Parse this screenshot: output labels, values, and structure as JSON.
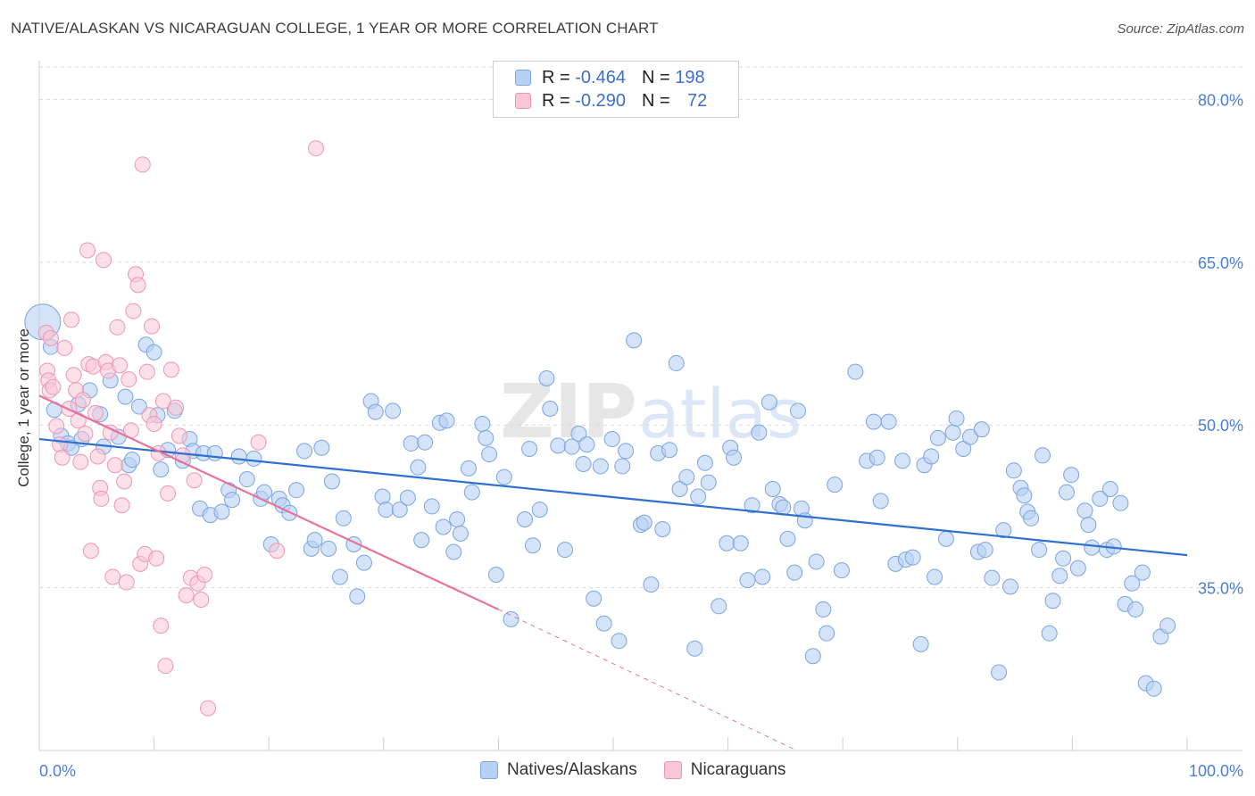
{
  "header": {
    "title": "NATIVE/ALASKAN VS NICARAGUAN COLLEGE, 1 YEAR OR MORE CORRELATION CHART",
    "source": "Source: ZipAtlas.com"
  },
  "legend": {
    "r_label": "R =",
    "n_label": "N =",
    "rows": [
      {
        "r": "-0.464",
        "n": "198"
      },
      {
        "r": "-0.290",
        "n": "72"
      }
    ]
  },
  "bottom_legend": [
    "Natives/Alaskans",
    "Nicaraguans"
  ],
  "colors": {
    "blue_fill": "#b7d0f3",
    "blue_stroke": "#7aa4e2",
    "blue_line": "#2f6fd0",
    "pink_fill": "#f8c6d6",
    "pink_stroke": "#ee95b3",
    "pink_line": "#e8719a",
    "grid": "#d9d9d9",
    "tick_text": "#4a7fd4"
  },
  "chart_data": {
    "type": "scatter",
    "title": "NATIVE/ALASKAN VS NICARAGUAN COLLEGE, 1 YEAR OR MORE CORRELATION CHART",
    "xlabel": "",
    "ylabel": "College, 1 year or more",
    "xlim": [
      0,
      100
    ],
    "ylim": [
      20,
      83
    ],
    "x_tick_labels": [
      "0.0%",
      "100.0%"
    ],
    "y_ticks": [
      35,
      50,
      65,
      80
    ],
    "y_tick_labels": [
      "35.0%",
      "50.0%",
      "65.0%",
      "80.0%"
    ],
    "watermark": "ZIPatlas",
    "series": [
      {
        "name": "Natives/Alaskans",
        "r": -0.464,
        "n": 198,
        "trend": {
          "x": [
            0,
            100
          ],
          "y": [
            48.7,
            38.0
          ]
        },
        "large_point": {
          "x": 0.3,
          "y": 59.5
        },
        "points": [
          [
            1.0,
            57.2
          ],
          [
            1.3,
            51.4
          ],
          [
            1.9,
            49.0
          ],
          [
            2.5,
            48.3
          ],
          [
            2.8,
            47.9
          ],
          [
            3.4,
            51.9
          ],
          [
            3.7,
            48.7
          ],
          [
            4.4,
            53.2
          ],
          [
            5.3,
            51.0
          ],
          [
            5.6,
            48.0
          ],
          [
            6.2,
            54.1
          ],
          [
            6.9,
            48.9
          ],
          [
            7.5,
            52.6
          ],
          [
            7.8,
            46.3
          ],
          [
            8.1,
            46.8
          ],
          [
            8.7,
            51.7
          ],
          [
            9.3,
            57.4
          ],
          [
            10.0,
            56.7
          ],
          [
            10.3,
            50.9
          ],
          [
            10.6,
            45.9
          ],
          [
            11.2,
            47.7
          ],
          [
            11.8,
            51.3
          ],
          [
            12.5,
            46.7
          ],
          [
            13.1,
            48.7
          ],
          [
            13.4,
            47.6
          ],
          [
            14.0,
            42.3
          ],
          [
            14.3,
            47.4
          ],
          [
            14.9,
            41.7
          ],
          [
            15.3,
            47.4
          ],
          [
            15.9,
            42.0
          ],
          [
            16.5,
            44.0
          ],
          [
            16.8,
            43.1
          ],
          [
            17.4,
            47.1
          ],
          [
            18.1,
            45.0
          ],
          [
            18.7,
            46.9
          ],
          [
            19.3,
            43.2
          ],
          [
            19.6,
            43.8
          ],
          [
            20.2,
            39.0
          ],
          [
            20.9,
            43.2
          ],
          [
            21.2,
            42.6
          ],
          [
            21.8,
            41.9
          ],
          [
            22.4,
            44.0
          ],
          [
            23.1,
            47.6
          ],
          [
            23.7,
            38.6
          ],
          [
            24.0,
            39.4
          ],
          [
            24.6,
            47.9
          ],
          [
            25.2,
            38.6
          ],
          [
            25.5,
            44.8
          ],
          [
            26.2,
            36.0
          ],
          [
            26.5,
            41.4
          ],
          [
            27.4,
            39.0
          ],
          [
            27.7,
            34.2
          ],
          [
            28.3,
            37.3
          ],
          [
            28.9,
            52.2
          ],
          [
            29.3,
            51.2
          ],
          [
            29.9,
            43.4
          ],
          [
            30.2,
            42.2
          ],
          [
            30.8,
            51.3
          ],
          [
            31.4,
            42.2
          ],
          [
            32.1,
            43.3
          ],
          [
            32.4,
            48.3
          ],
          [
            33.0,
            46.1
          ],
          [
            33.3,
            39.4
          ],
          [
            33.6,
            48.4
          ],
          [
            34.2,
            42.5
          ],
          [
            34.9,
            50.2
          ],
          [
            35.2,
            40.6
          ],
          [
            35.5,
            50.4
          ],
          [
            36.1,
            38.3
          ],
          [
            36.4,
            41.3
          ],
          [
            36.7,
            40.0
          ],
          [
            37.4,
            46.0
          ],
          [
            37.7,
            43.8
          ],
          [
            38.6,
            50.1
          ],
          [
            38.9,
            48.8
          ],
          [
            39.2,
            47.3
          ],
          [
            39.8,
            36.2
          ],
          [
            40.5,
            45.2
          ],
          [
            41.1,
            32.1
          ],
          [
            42.3,
            41.3
          ],
          [
            42.7,
            47.8
          ],
          [
            43.0,
            38.9
          ],
          [
            43.6,
            42.2
          ],
          [
            44.2,
            54.3
          ],
          [
            44.5,
            51.5
          ],
          [
            45.2,
            48.1
          ],
          [
            45.8,
            38.5
          ],
          [
            46.4,
            48.0
          ],
          [
            47.0,
            49.2
          ],
          [
            47.4,
            46.4
          ],
          [
            47.7,
            48.2
          ],
          [
            48.3,
            34.0
          ],
          [
            48.9,
            46.2
          ],
          [
            49.2,
            31.7
          ],
          [
            49.9,
            48.7
          ],
          [
            50.5,
            30.1
          ],
          [
            50.8,
            46.2
          ],
          [
            51.1,
            47.6
          ],
          [
            51.8,
            57.8
          ],
          [
            52.4,
            40.8
          ],
          [
            52.7,
            41.0
          ],
          [
            53.3,
            35.3
          ],
          [
            53.9,
            47.4
          ],
          [
            54.3,
            40.4
          ],
          [
            54.9,
            47.7
          ],
          [
            55.5,
            55.7
          ],
          [
            55.8,
            44.1
          ],
          [
            56.4,
            45.2
          ],
          [
            57.1,
            29.4
          ],
          [
            57.4,
            43.4
          ],
          [
            58.0,
            46.5
          ],
          [
            58.3,
            44.7
          ],
          [
            59.2,
            33.3
          ],
          [
            59.9,
            39.1
          ],
          [
            60.2,
            47.9
          ],
          [
            60.5,
            47.0
          ],
          [
            61.1,
            39.1
          ],
          [
            61.7,
            35.7
          ],
          [
            62.1,
            42.6
          ],
          [
            62.7,
            49.3
          ],
          [
            63.0,
            36.0
          ],
          [
            63.6,
            52.1
          ],
          [
            63.9,
            44.1
          ],
          [
            64.5,
            42.7
          ],
          [
            64.8,
            42.4
          ],
          [
            65.2,
            39.5
          ],
          [
            65.8,
            36.4
          ],
          [
            66.1,
            51.3
          ],
          [
            66.4,
            42.3
          ],
          [
            66.7,
            41.2
          ],
          [
            67.4,
            28.7
          ],
          [
            67.7,
            37.4
          ],
          [
            68.3,
            33.0
          ],
          [
            68.6,
            30.8
          ],
          [
            69.3,
            44.5
          ],
          [
            69.9,
            36.6
          ],
          [
            71.1,
            54.9
          ],
          [
            72.1,
            46.7
          ],
          [
            72.7,
            50.3
          ],
          [
            73.0,
            47.0
          ],
          [
            73.3,
            43.0
          ],
          [
            74.0,
            50.3
          ],
          [
            74.6,
            37.2
          ],
          [
            75.2,
            46.7
          ],
          [
            75.5,
            37.6
          ],
          [
            76.1,
            37.8
          ],
          [
            76.8,
            29.8
          ],
          [
            77.1,
            46.3
          ],
          [
            77.7,
            47.1
          ],
          [
            78.0,
            36.0
          ],
          [
            78.3,
            48.8
          ],
          [
            79.0,
            39.5
          ],
          [
            79.6,
            49.3
          ],
          [
            79.9,
            50.6
          ],
          [
            80.5,
            47.8
          ],
          [
            81.1,
            48.9
          ],
          [
            81.8,
            38.3
          ],
          [
            82.1,
            49.6
          ],
          [
            82.4,
            38.5
          ],
          [
            83.0,
            35.9
          ],
          [
            83.6,
            27.2
          ],
          [
            84.0,
            40.3
          ],
          [
            84.6,
            35.1
          ],
          [
            84.9,
            45.8
          ],
          [
            85.5,
            44.2
          ],
          [
            85.8,
            43.5
          ],
          [
            86.1,
            42.0
          ],
          [
            86.4,
            41.4
          ],
          [
            87.1,
            38.5
          ],
          [
            87.4,
            47.2
          ],
          [
            88.0,
            30.8
          ],
          [
            88.3,
            33.8
          ],
          [
            88.9,
            36.1
          ],
          [
            89.2,
            37.7
          ],
          [
            89.5,
            43.8
          ],
          [
            89.9,
            45.4
          ],
          [
            90.5,
            36.8
          ],
          [
            91.1,
            42.1
          ],
          [
            91.4,
            40.8
          ],
          [
            91.7,
            38.7
          ],
          [
            92.4,
            43.2
          ],
          [
            93.0,
            38.5
          ],
          [
            93.3,
            44.1
          ],
          [
            93.6,
            38.8
          ],
          [
            94.2,
            42.8
          ],
          [
            94.6,
            33.5
          ],
          [
            95.2,
            35.4
          ],
          [
            95.5,
            33.0
          ],
          [
            96.1,
            36.4
          ],
          [
            96.4,
            26.2
          ],
          [
            97.1,
            25.7
          ],
          [
            97.7,
            30.5
          ],
          [
            98.3,
            31.5
          ]
        ]
      },
      {
        "name": "Nicaraguans",
        "r": -0.29,
        "n": 72,
        "trend": {
          "x": [
            0,
            40
          ],
          "y": [
            52.7,
            33.0
          ]
        },
        "trend_extension": {
          "x": [
            40,
            66
          ],
          "y": [
            33.0,
            20.0
          ]
        },
        "points": [
          [
            0.6,
            58.5
          ],
          [
            0.7,
            55.0
          ],
          [
            0.8,
            54.1
          ],
          [
            0.9,
            53.2
          ],
          [
            1.0,
            58.0
          ],
          [
            1.2,
            53.5
          ],
          [
            1.5,
            49.9
          ],
          [
            1.8,
            48.2
          ],
          [
            2.0,
            47.0
          ],
          [
            2.2,
            57.1
          ],
          [
            2.6,
            51.5
          ],
          [
            2.8,
            59.7
          ],
          [
            3.0,
            54.6
          ],
          [
            3.2,
            53.2
          ],
          [
            3.4,
            50.4
          ],
          [
            3.6,
            46.6
          ],
          [
            3.8,
            52.3
          ],
          [
            4.0,
            49.2
          ],
          [
            4.2,
            66.1
          ],
          [
            4.3,
            55.6
          ],
          [
            4.5,
            38.4
          ],
          [
            4.7,
            55.4
          ],
          [
            4.9,
            51.1
          ],
          [
            5.1,
            47.1
          ],
          [
            5.3,
            44.2
          ],
          [
            5.4,
            43.2
          ],
          [
            5.6,
            65.2
          ],
          [
            5.8,
            55.8
          ],
          [
            6.0,
            55.0
          ],
          [
            6.2,
            49.3
          ],
          [
            6.4,
            36.0
          ],
          [
            6.6,
            46.3
          ],
          [
            6.8,
            59.0
          ],
          [
            7.0,
            55.5
          ],
          [
            7.2,
            42.6
          ],
          [
            7.4,
            44.8
          ],
          [
            7.6,
            35.5
          ],
          [
            7.8,
            54.2
          ],
          [
            8.0,
            49.5
          ],
          [
            8.2,
            60.5
          ],
          [
            8.4,
            63.9
          ],
          [
            8.6,
            62.9
          ],
          [
            8.8,
            37.2
          ],
          [
            9.0,
            74.0
          ],
          [
            9.2,
            38.1
          ],
          [
            9.4,
            54.9
          ],
          [
            9.6,
            50.9
          ],
          [
            9.8,
            59.1
          ],
          [
            10.0,
            50.1
          ],
          [
            10.2,
            37.7
          ],
          [
            10.4,
            47.4
          ],
          [
            10.6,
            31.5
          ],
          [
            10.8,
            52.2
          ],
          [
            11.0,
            27.8
          ],
          [
            11.2,
            43.7
          ],
          [
            11.5,
            55.1
          ],
          [
            11.9,
            51.6
          ],
          [
            12.2,
            49.0
          ],
          [
            12.5,
            47.2
          ],
          [
            12.8,
            34.3
          ],
          [
            13.2,
            35.9
          ],
          [
            13.5,
            44.9
          ],
          [
            13.8,
            35.4
          ],
          [
            14.1,
            33.9
          ],
          [
            14.4,
            36.2
          ],
          [
            14.7,
            23.9
          ],
          [
            19.1,
            48.4
          ],
          [
            20.7,
            38.4
          ],
          [
            24.1,
            75.5
          ]
        ]
      }
    ]
  }
}
